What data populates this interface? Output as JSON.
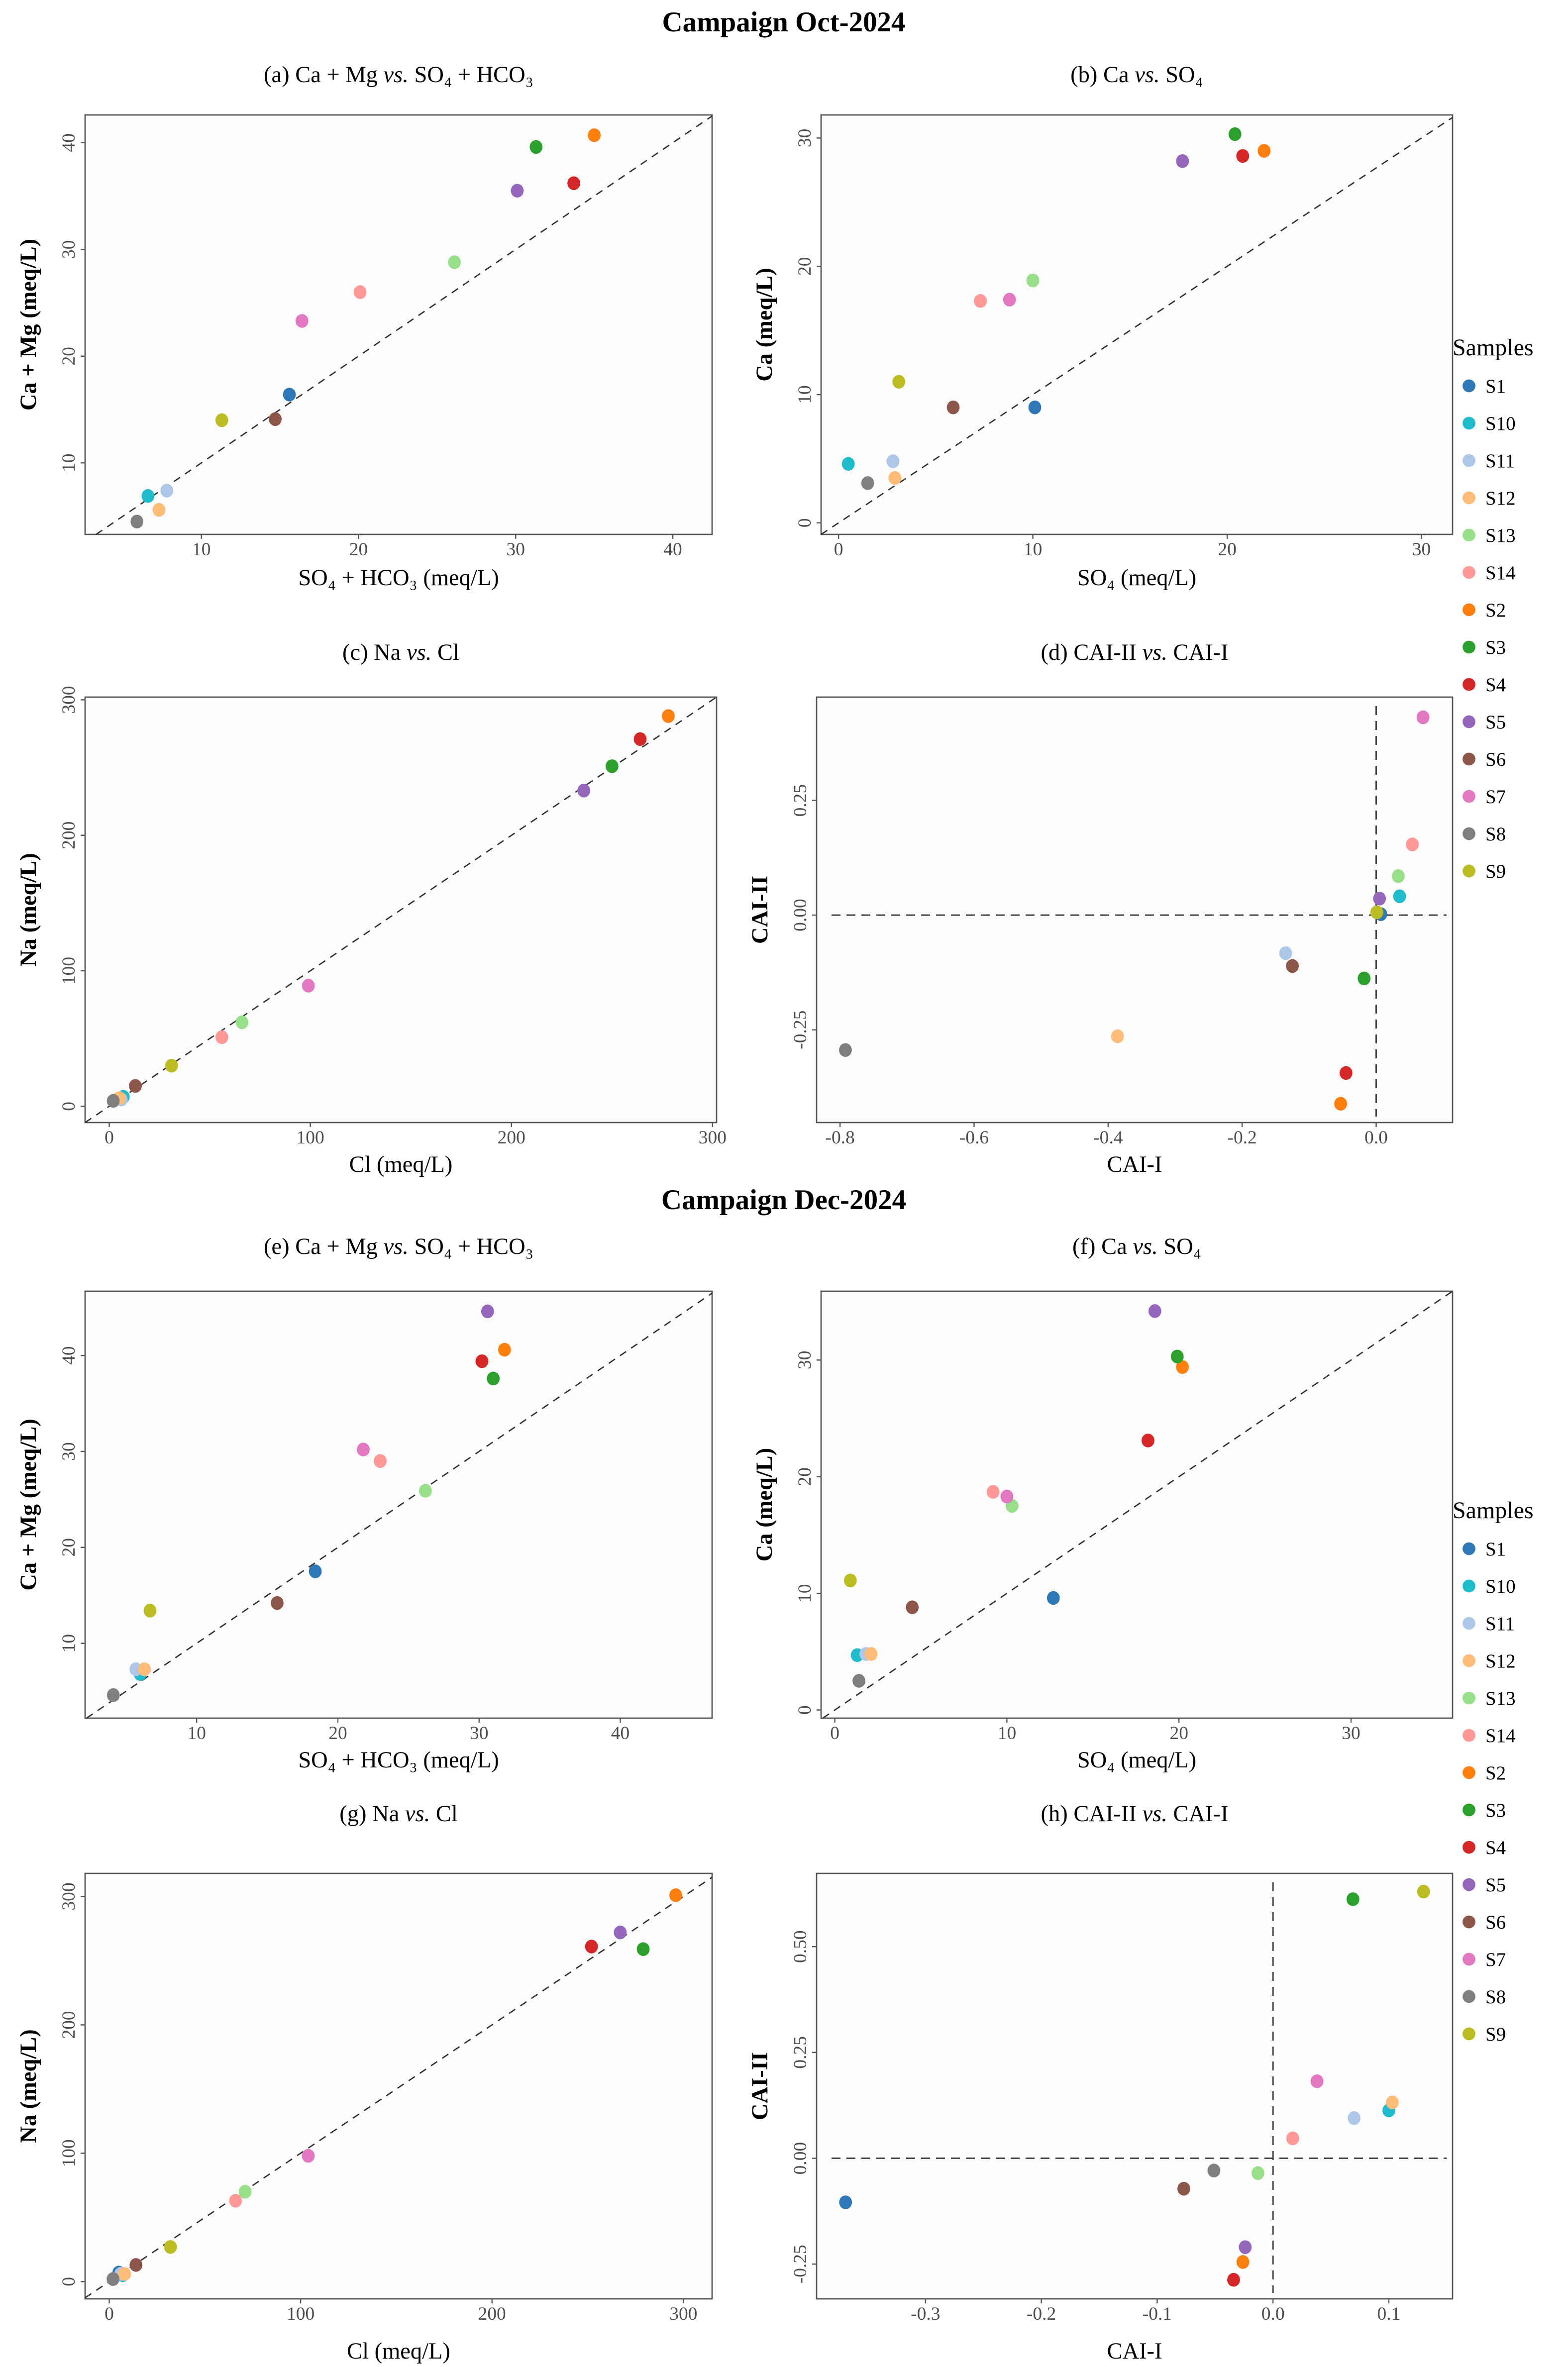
{
  "campaigns": [
    "Campaign Oct-2024",
    "Campaign Dec-2024"
  ],
  "legend": {
    "title": "Samples",
    "items": [
      {
        "name": "S1",
        "color": "#2f78b7"
      },
      {
        "name": "S10",
        "color": "#1fbccd"
      },
      {
        "name": "S11",
        "color": "#aec7e8"
      },
      {
        "name": "S12",
        "color": "#ffbb78"
      },
      {
        "name": "S13",
        "color": "#98df8a"
      },
      {
        "name": "S14",
        "color": "#ff9896"
      },
      {
        "name": "S2",
        "color": "#ff7f0e"
      },
      {
        "name": "S3",
        "color": "#2ca02c"
      },
      {
        "name": "S4",
        "color": "#d62728"
      },
      {
        "name": "S5",
        "color": "#9467bd"
      },
      {
        "name": "S6",
        "color": "#8c564b"
      },
      {
        "name": "S7",
        "color": "#e377c2"
      },
      {
        "name": "S8",
        "color": "#7f7f7f"
      },
      {
        "name": "S9",
        "color": "#bcbd22"
      }
    ]
  },
  "chart_data": [
    {
      "type": "scatter",
      "campaign": "Campaign Oct-2024",
      "title": {
        "prefix": "(a) Ca + Mg ",
        "vs": "vs.",
        "suffix": " SO₄ + HCO₃"
      },
      "xlabel": "SO₄ + HCO₃ (meq/L)",
      "ylabel": "Ca + Mg (meq/L)",
      "xlim": [
        2.6,
        42.5
      ],
      "ylim": [
        3.3,
        42.6
      ],
      "xticks": [
        "10",
        "20",
        "30",
        "40"
      ],
      "yticks": [
        "10",
        "20",
        "30",
        "40"
      ],
      "reference": "1:1 line",
      "grid": false,
      "points": {
        "S1": [
          15.6,
          16.4
        ],
        "S10": [
          6.6,
          6.9
        ],
        "S11": [
          7.8,
          7.4
        ],
        "S12": [
          7.3,
          5.6
        ],
        "S13": [
          26.1,
          28.8
        ],
        "S14": [
          20.1,
          26.0
        ],
        "S2": [
          35.0,
          40.7
        ],
        "S3": [
          31.3,
          39.6
        ],
        "S4": [
          33.7,
          36.2
        ],
        "S5": [
          30.1,
          35.5
        ],
        "S6": [
          14.7,
          14.1
        ],
        "S7": [
          16.4,
          23.3
        ],
        "S8": [
          5.9,
          4.5
        ],
        "S9": [
          11.3,
          14.0
        ]
      }
    },
    {
      "type": "scatter",
      "campaign": "Campaign Oct-2024",
      "title": {
        "prefix": "(b) Ca ",
        "vs": "vs.",
        "suffix": " SO₄"
      },
      "xlabel": "SO₄ (meq/L)",
      "ylabel": "Ca (meq/L)",
      "xlim": [
        -0.9,
        31.6
      ],
      "ylim": [
        -0.9,
        31.8
      ],
      "xticks": [
        "0",
        "10",
        "20",
        "30"
      ],
      "yticks": [
        "0",
        "10",
        "20",
        "30"
      ],
      "reference": "1:1 line",
      "grid": false,
      "legend": "right",
      "points": {
        "S1": [
          10.1,
          9.0
        ],
        "S10": [
          0.5,
          4.6
        ],
        "S11": [
          2.8,
          4.8
        ],
        "S12": [
          2.9,
          3.5
        ],
        "S13": [
          10.0,
          18.9
        ],
        "S14": [
          7.3,
          17.3
        ],
        "S2": [
          21.9,
          29.0
        ],
        "S3": [
          20.4,
          30.3
        ],
        "S4": [
          20.8,
          28.6
        ],
        "S5": [
          17.7,
          28.2
        ],
        "S6": [
          5.9,
          9.0
        ],
        "S7": [
          8.8,
          17.4
        ],
        "S8": [
          1.5,
          3.1
        ],
        "S9": [
          3.1,
          11.0
        ]
      }
    },
    {
      "type": "scatter",
      "campaign": "Campaign Oct-2024",
      "title": {
        "prefix": "(c) Na ",
        "vs": "vs.",
        "suffix": " Cl"
      },
      "xlabel": "Cl (meq/L)",
      "ylabel": "Na (meq/L)",
      "xlim": [
        -12,
        302
      ],
      "ylim": [
        -12,
        302
      ],
      "xticks": [
        "0",
        "100",
        "200",
        "300"
      ],
      "yticks": [
        "0",
        "100",
        "200",
        "300"
      ],
      "reference": "1:1 line",
      "grid": false,
      "points": {
        "S1": [
          6,
          6
        ],
        "S10": [
          7,
          7
        ],
        "S11": [
          6,
          5
        ],
        "S12": [
          5,
          6
        ],
        "S13": [
          66,
          62
        ],
        "S14": [
          56,
          51
        ],
        "S2": [
          278,
          288
        ],
        "S3": [
          250,
          251
        ],
        "S4": [
          264,
          271
        ],
        "S5": [
          236,
          233
        ],
        "S6": [
          13,
          15
        ],
        "S7": [
          99,
          89
        ],
        "S8": [
          2,
          4
        ],
        "S9": [
          31,
          30
        ]
      }
    },
    {
      "type": "scatter",
      "campaign": "Campaign Oct-2024",
      "title": {
        "prefix": "(d) CAI-II ",
        "vs": "vs.",
        "suffix": " CAI-I"
      },
      "xlabel": "CAI-I",
      "ylabel": "CAI-II",
      "xlim": [
        -0.835,
        0.114
      ],
      "ylim": [
        -0.452,
        0.475
      ],
      "xticks": [
        "-0.8",
        "-0.6",
        "-0.4",
        "-0.2",
        "0.0"
      ],
      "yticks": [
        "-0.25",
        "0.00",
        "0.25"
      ],
      "reference": "zero lines",
      "grid": false,
      "points": {
        "S1": [
          0.007,
          0.002
        ],
        "S10": [
          0.035,
          0.041
        ],
        "S11": [
          -0.135,
          -0.083
        ],
        "S12": [
          -0.386,
          -0.264
        ],
        "S13": [
          0.033,
          0.085
        ],
        "S14": [
          0.054,
          0.154
        ],
        "S2": [
          -0.053,
          -0.411
        ],
        "S3": [
          -0.018,
          -0.138
        ],
        "S4": [
          -0.045,
          -0.344
        ],
        "S5": [
          0.005,
          0.036
        ],
        "S6": [
          -0.125,
          -0.111
        ],
        "S7": [
          0.07,
          0.431
        ],
        "S8": [
          -0.792,
          -0.294
        ],
        "S9": [
          0.001,
          0.006
        ]
      }
    },
    {
      "type": "scatter",
      "campaign": "Campaign Dec-2024",
      "title": {
        "prefix": "(e) Ca + Mg ",
        "vs": "vs.",
        "suffix": " SO₄ + HCO₃"
      },
      "xlabel": "SO₄ + HCO₃ (meq/L)",
      "ylabel": "Ca + Mg (meq/L)",
      "xlim": [
        2.1,
        46.5
      ],
      "ylim": [
        2.2,
        46.7
      ],
      "xticks": [
        "10",
        "20",
        "30",
        "40"
      ],
      "yticks": [
        "10",
        "20",
        "30",
        "40"
      ],
      "reference": "1:1 line",
      "grid": false,
      "points": {
        "S1": [
          18.4,
          17.5
        ],
        "S10": [
          6.0,
          6.8
        ],
        "S11": [
          5.7,
          7.3
        ],
        "S12": [
          6.3,
          7.3
        ],
        "S13": [
          26.2,
          25.9
        ],
        "S14": [
          23.0,
          29.0
        ],
        "S2": [
          31.8,
          40.6
        ],
        "S3": [
          31.0,
          37.6
        ],
        "S4": [
          30.2,
          39.4
        ],
        "S5": [
          30.6,
          44.6
        ],
        "S6": [
          15.7,
          14.2
        ],
        "S7": [
          21.8,
          30.2
        ],
        "S8": [
          4.1,
          4.6
        ],
        "S9": [
          6.7,
          13.4
        ]
      }
    },
    {
      "type": "scatter",
      "campaign": "Campaign Dec-2024",
      "title": {
        "prefix": "(f) Ca ",
        "vs": "vs.",
        "suffix": " SO₄"
      },
      "xlabel": "SO₄ (meq/L)",
      "ylabel": "Ca (meq/L)",
      "xlim": [
        -0.8,
        35.9
      ],
      "ylim": [
        -0.7,
        35.9
      ],
      "xticks": [
        "0",
        "10",
        "20",
        "30"
      ],
      "yticks": [
        "0",
        "10",
        "20",
        "30"
      ],
      "reference": "1:1 line",
      "grid": false,
      "legend": "right",
      "points": {
        "S1": [
          12.7,
          9.6
        ],
        "S10": [
          1.3,
          4.7
        ],
        "S11": [
          1.8,
          4.8
        ],
        "S12": [
          2.1,
          4.8
        ],
        "S13": [
          10.3,
          17.5
        ],
        "S14": [
          9.2,
          18.7
        ],
        "S2": [
          20.2,
          29.4
        ],
        "S3": [
          19.9,
          30.3
        ],
        "S4": [
          18.2,
          23.1
        ],
        "S5": [
          18.6,
          34.2
        ],
        "S6": [
          4.5,
          8.8
        ],
        "S7": [
          10.0,
          18.3
        ],
        "S8": [
          1.4,
          2.5
        ],
        "S9": [
          0.9,
          11.1
        ]
      }
    },
    {
      "type": "scatter",
      "campaign": "Campaign Dec-2024",
      "title": {
        "prefix": "(g) Na ",
        "vs": "vs.",
        "suffix": " Cl"
      },
      "xlabel": "Cl (meq/L)",
      "ylabel": "Na (meq/L)",
      "xlim": [
        -12.6,
        315
      ],
      "ylim": [
        -13.4,
        318
      ],
      "xticks": [
        "0",
        "100",
        "200",
        "300"
      ],
      "yticks": [
        "0",
        "100",
        "200",
        "300"
      ],
      "reference": "1:1 line",
      "grid": false,
      "points": {
        "S1": [
          5,
          7
        ],
        "S10": [
          7,
          5
        ],
        "S11": [
          6,
          6
        ],
        "S12": [
          8,
          6
        ],
        "S13": [
          71,
          70
        ],
        "S14": [
          66,
          63
        ],
        "S2": [
          296,
          301
        ],
        "S3": [
          279,
          259
        ],
        "S4": [
          252,
          261
        ],
        "S5": [
          267,
          272
        ],
        "S6": [
          14,
          13
        ],
        "S7": [
          104,
          98
        ],
        "S8": [
          2,
          2
        ],
        "S9": [
          32,
          27
        ]
      }
    },
    {
      "type": "scatter",
      "campaign": "Campaign Dec-2024",
      "title": {
        "prefix": "(h) CAI-II ",
        "vs": "vs.",
        "suffix": " CAI-I"
      },
      "xlabel": "CAI-I",
      "ylabel": "CAI-II",
      "xlim": [
        -0.394,
        0.155
      ],
      "ylim": [
        -0.332,
        0.673
      ],
      "xticks": [
        "-0.3",
        "-0.2",
        "-0.1",
        "0.0",
        "0.1"
      ],
      "yticks": [
        "-0.25",
        "0.00",
        "0.25",
        "0.50"
      ],
      "reference": "zero lines",
      "grid": false,
      "points": {
        "S1": [
          -0.369,
          -0.104
        ],
        "S10": [
          0.1,
          0.113
        ],
        "S11": [
          0.07,
          0.095
        ],
        "S12": [
          0.103,
          0.132
        ],
        "S13": [
          -0.013,
          -0.035
        ],
        "S14": [
          0.017,
          0.047
        ],
        "S2": [
          -0.026,
          -0.245
        ],
        "S3": [
          0.069,
          0.612
        ],
        "S4": [
          -0.034,
          -0.287
        ],
        "S5": [
          -0.024,
          -0.21
        ],
        "S6": [
          -0.077,
          -0.072
        ],
        "S7": [
          0.038,
          0.182
        ],
        "S8": [
          -0.051,
          -0.029
        ],
        "S9": [
          0.13,
          0.63
        ]
      }
    }
  ]
}
